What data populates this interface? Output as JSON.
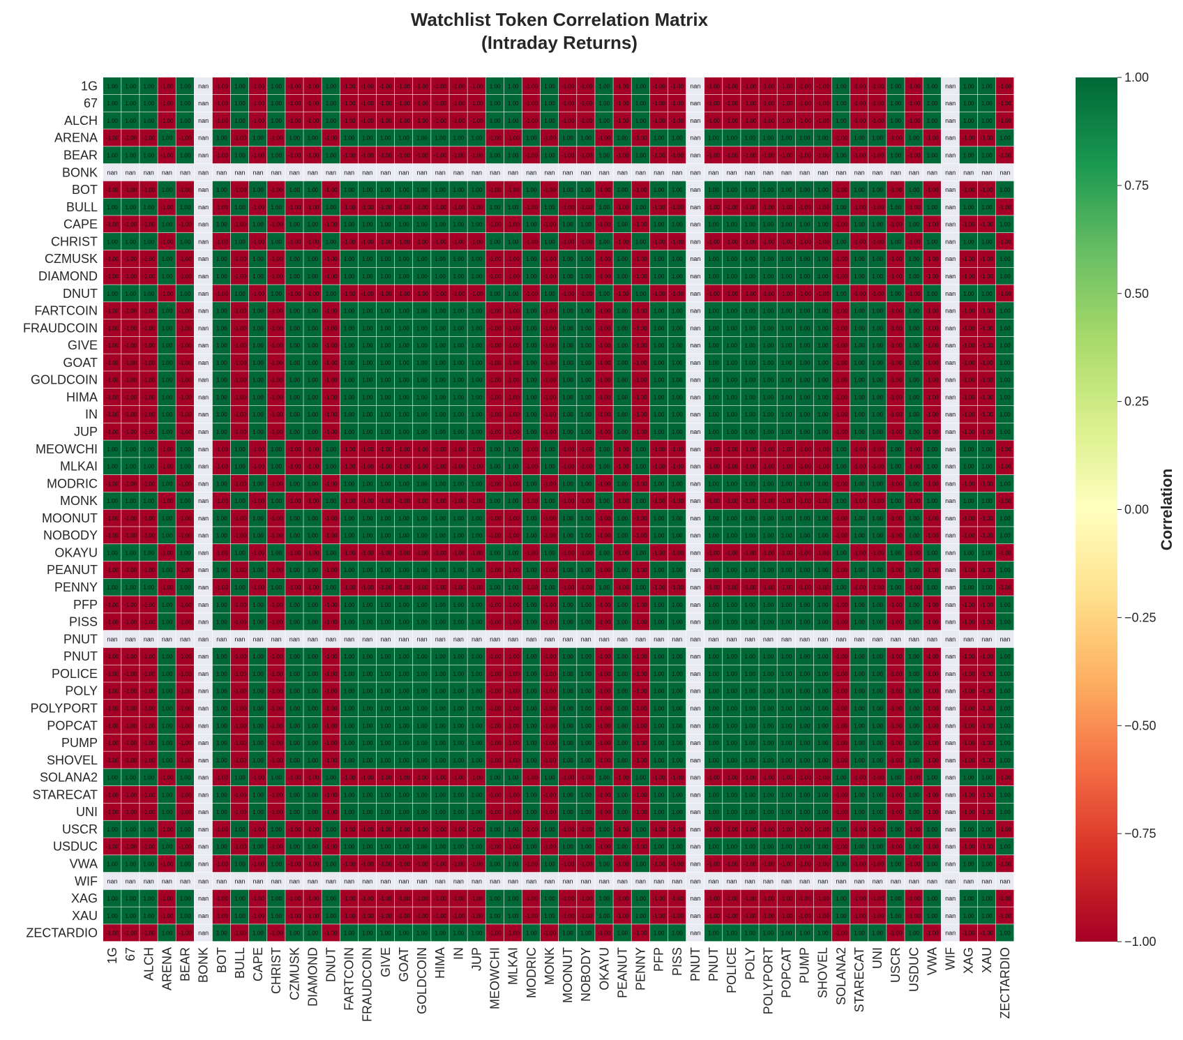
{
  "chart_data": {
    "type": "heatmap",
    "title": "Watchlist Token Correlation Matrix",
    "subtitle": "(Intraday Returns)",
    "labels": [
      "1G",
      "67",
      "ALCH",
      "ARENA",
      "BEAR",
      "BONK",
      "BOT",
      "BULL",
      "CAPE",
      "CHRIST",
      "CZMUSK",
      "DIAMOND",
      "DNUT",
      "FARTCOIN",
      "FRAUDCOIN",
      "GIVE",
      "GOAT",
      "GOLDCOIN",
      "HIMA",
      "IN",
      "JUP",
      "MEOWCHI",
      "MLKAI",
      "MODRIC",
      "MONK",
      "MOONUT",
      "NOBODY",
      "OKAYU",
      "PEANUT",
      "PENNY",
      "PFP",
      "PISS",
      "PNUT",
      "PNUT",
      "POLICE",
      "POLY",
      "POLYPORT",
      "POPCAT",
      "PUMP",
      "SHOVEL",
      "SOLANA2",
      "STARECAT",
      "UNI",
      "USCR",
      "USDUC",
      "VWA",
      "WIF",
      "XAG",
      "XAU",
      "ZECTARDIO"
    ],
    "signs": [
      1,
      1,
      1,
      -1,
      1,
      0,
      -1,
      1,
      -1,
      1,
      -1,
      -1,
      1,
      -1,
      -1,
      -1,
      -1,
      -1,
      -1,
      -1,
      -1,
      1,
      1,
      -1,
      1,
      -1,
      -1,
      1,
      -1,
      1,
      -1,
      -1,
      0,
      -1,
      -1,
      -1,
      -1,
      -1,
      -1,
      -1,
      1,
      -1,
      -1,
      1,
      -1,
      1,
      0,
      1,
      1,
      -1
    ],
    "nan_labels": [
      "BONK",
      "PNUT",
      "WIF"
    ],
    "nan_text": "nan",
    "cell_text": "1.00",
    "value_rule": "corr(i,j) = sign(i) * sign(j); nan where sign is 0",
    "colorbar": {
      "label": "Correlation",
      "vmin": -1.0,
      "vmax": 1.0,
      "ticks": [
        "1.00",
        "0.75",
        "0.50",
        "0.25",
        "0.00",
        "−0.25",
        "−0.50",
        "−0.75",
        "−1.00"
      ],
      "colormap": "RdYlGn",
      "colors": [
        "#a50026",
        "#d73027",
        "#f46d43",
        "#fdae61",
        "#fee08b",
        "#ffffbf",
        "#d9ef8b",
        "#a6d96a",
        "#66bd63",
        "#1a9850",
        "#006837"
      ]
    },
    "nan_color": "#eaeaf2"
  }
}
